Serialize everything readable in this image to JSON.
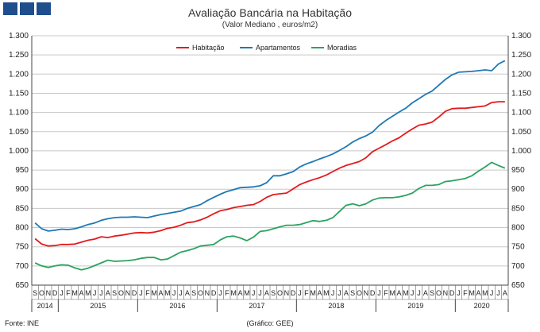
{
  "header": {
    "title": "Avaliação Bancária na Habitação",
    "subtitle": "(Valor Mediano , euros/m2)"
  },
  "footer": {
    "source": "Fonte: INE",
    "credit": "(Gráfico: GEE)"
  },
  "chart_data": {
    "type": "line",
    "title": "Avaliação Bancária na Habitação",
    "subtitle": "(Valor Mediano , euros/m2)",
    "ylim": [
      650,
      1300
    ],
    "y_ticks": [
      650,
      700,
      750,
      800,
      850,
      900,
      950,
      "1.000",
      "1.050",
      "1.100",
      "1.150",
      "1.200",
      "1.250",
      "1.300"
    ],
    "y_ticks_values": [
      650,
      700,
      750,
      800,
      850,
      900,
      950,
      1000,
      1050,
      1100,
      1150,
      1200,
      1250,
      1300
    ],
    "grid": true,
    "legend_position": "top",
    "x": [
      "2014-09",
      "2014-10",
      "2014-11",
      "2014-12",
      "2015-01",
      "2015-02",
      "2015-03",
      "2015-04",
      "2015-05",
      "2015-06",
      "2015-07",
      "2015-08",
      "2015-09",
      "2015-10",
      "2015-11",
      "2015-12",
      "2016-01",
      "2016-02",
      "2016-03",
      "2016-04",
      "2016-05",
      "2016-06",
      "2016-07",
      "2016-08",
      "2016-09",
      "2016-10",
      "2016-11",
      "2016-12",
      "2017-01",
      "2017-02",
      "2017-03",
      "2017-04",
      "2017-05",
      "2017-06",
      "2017-07",
      "2017-08",
      "2017-09",
      "2017-10",
      "2017-11",
      "2017-12",
      "2018-01",
      "2018-02",
      "2018-03",
      "2018-04",
      "2018-05",
      "2018-06",
      "2018-07",
      "2018-08",
      "2018-09",
      "2018-10",
      "2018-11",
      "2018-12",
      "2019-01",
      "2019-02",
      "2019-03",
      "2019-04",
      "2019-05",
      "2019-06",
      "2019-07",
      "2019-08",
      "2019-09",
      "2019-10",
      "2019-11",
      "2019-12",
      "2020-01",
      "2020-02",
      "2020-03",
      "2020-04",
      "2020-05",
      "2020-06",
      "2020-07",
      "2020-08"
    ],
    "month_labels": [
      "S",
      "O",
      "N",
      "D",
      "J",
      "F",
      "M",
      "A",
      "M",
      "J",
      "J",
      "A",
      "S",
      "O",
      "N",
      "D",
      "J",
      "F",
      "M",
      "A",
      "M",
      "J",
      "J",
      "A",
      "S",
      "O",
      "N",
      "D",
      "J",
      "F",
      "M",
      "A",
      "M",
      "J",
      "J",
      "A",
      "S",
      "O",
      "N",
      "D",
      "J",
      "F",
      "M",
      "A",
      "M",
      "J",
      "J",
      "A",
      "S",
      "O",
      "N",
      "D",
      "J",
      "F",
      "M",
      "A",
      "M",
      "J",
      "J",
      "A",
      "S",
      "O",
      "N",
      "D",
      "J",
      "F",
      "M",
      "A",
      "M",
      "J",
      "J",
      "A"
    ],
    "years": [
      {
        "label": "2014",
        "start": 0,
        "count": 4
      },
      {
        "label": "2015",
        "start": 4,
        "count": 12
      },
      {
        "label": "2016",
        "start": 16,
        "count": 12
      },
      {
        "label": "2017",
        "start": 28,
        "count": 12
      },
      {
        "label": "2018",
        "start": 40,
        "count": 12
      },
      {
        "label": "2019",
        "start": 52,
        "count": 12
      },
      {
        "label": "2020",
        "start": 64,
        "count": 8
      }
    ],
    "series": [
      {
        "name": "Habitação",
        "color": "#e31a1c",
        "values": [
          771,
          757,
          752,
          753,
          756,
          756,
          757,
          762,
          767,
          770,
          776,
          774,
          778,
          780,
          783,
          786,
          787,
          786,
          788,
          792,
          798,
          801,
          806,
          813,
          815,
          820,
          827,
          836,
          844,
          847,
          852,
          855,
          858,
          860,
          868,
          879,
          886,
          888,
          890,
          901,
          912,
          919,
          925,
          930,
          937,
          946,
          955,
          962,
          967,
          972,
          982,
          998,
          1007,
          1016,
          1026,
          1034,
          1046,
          1057,
          1067,
          1070,
          1075,
          1088,
          1103,
          1110,
          1111,
          1111,
          1113,
          1115,
          1117,
          1126,
          1128,
          1128
        ]
      },
      {
        "name": "Apartamentos",
        "color": "#1f78b4",
        "values": [
          812,
          797,
          791,
          793,
          796,
          795,
          797,
          802,
          808,
          812,
          819,
          823,
          826,
          827,
          827,
          828,
          827,
          826,
          830,
          834,
          837,
          840,
          843,
          850,
          855,
          860,
          870,
          879,
          887,
          894,
          899,
          904,
          905,
          906,
          909,
          917,
          935,
          935,
          940,
          946,
          958,
          966,
          972,
          979,
          985,
          992,
          1001,
          1011,
          1023,
          1032,
          1039,
          1049,
          1066,
          1079,
          1090,
          1101,
          1111,
          1125,
          1136,
          1147,
          1156,
          1171,
          1186,
          1198,
          1205,
          1206,
          1207,
          1209,
          1211,
          1209,
          1226,
          1235
        ]
      },
      {
        "name": "Moradias",
        "color": "#2ca25f",
        "values": [
          708,
          700,
          696,
          700,
          703,
          702,
          695,
          690,
          694,
          701,
          708,
          715,
          712,
          713,
          714,
          716,
          720,
          722,
          722,
          716,
          718,
          727,
          736,
          740,
          745,
          752,
          754,
          756,
          768,
          776,
          778,
          773,
          766,
          775,
          790,
          792,
          797,
          802,
          806,
          806,
          808,
          813,
          818,
          816,
          819,
          826,
          842,
          858,
          862,
          857,
          862,
          872,
          877,
          878,
          878,
          880,
          884,
          890,
          902,
          910,
          910,
          912,
          920,
          922,
          925,
          928,
          935,
          947,
          958,
          970,
          962,
          955
        ]
      }
    ]
  }
}
